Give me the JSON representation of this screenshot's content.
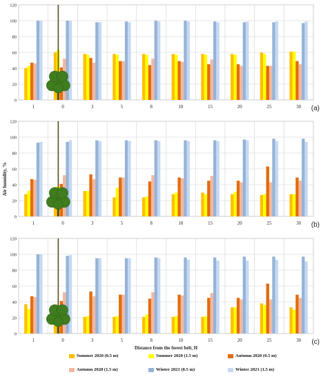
{
  "figure": {
    "ylabel": "Air humidity, %",
    "xlabel": "Distance from the forest belt, H"
  },
  "colors": {
    "Summer 2020 (0.5 m)": "#FFC000",
    "Summer 2020 (1.5 m)": "#FFFF00",
    "Autumn 2020 (0.5 m)": "#E36C0A",
    "Autumn 2020 (1.5 m)": "#F2B7A0",
    "Winter 2021 (0.5 m)": "#95B3D7",
    "Winter 2021 (1.5 m)": "#C6D9F1"
  },
  "legend": {
    "items": [
      "Summer 2020 (0.5 m)",
      "Summer 2020 (1.5 m)",
      "Autumn 2020 (0.5 m)",
      "Autumn 2020 (1.5 m)",
      "Winter 2021 (0.5 m)",
      "Winter 2021 (1.5 m)"
    ]
  },
  "chart_data": [
    {
      "type": "bar",
      "panel_label": "(a)",
      "categories": [
        "1",
        "0",
        "3",
        "5",
        "8",
        "10",
        "15",
        "20",
        "25",
        "30"
      ],
      "ylim": [
        0,
        120
      ],
      "yticks": [
        0,
        20,
        40,
        60,
        80,
        100,
        120
      ],
      "xlabel": "",
      "ylabel": "Air humidity, %",
      "series": [
        {
          "name": "Summer 2020 (0.5 m)",
          "values": [
            40,
            60,
            58,
            58,
            58,
            58,
            58,
            58,
            60,
            61
          ]
        },
        {
          "name": "Summer 2020 (1.5 m)",
          "values": [
            43,
            63,
            57,
            57,
            57,
            57,
            57,
            57,
            58,
            61
          ]
        },
        {
          "name": "Autumn 2020 (0.5 m)",
          "values": [
            47,
            41,
            53,
            49,
            44,
            49,
            45,
            45,
            43,
            49
          ]
        },
        {
          "name": "Autumn 2020 (1.5 m)",
          "values": [
            46,
            52,
            47,
            49,
            52,
            48,
            51,
            43,
            43,
            45
          ]
        },
        {
          "name": "Winter 2021 (0.5 m)",
          "values": [
            100,
            100,
            98,
            99,
            100,
            100,
            99,
            98,
            98,
            97
          ]
        },
        {
          "name": "Winter 2021 (1.5 m)",
          "values": [
            100,
            100,
            98,
            98,
            99,
            99,
            98,
            99,
            99,
            99
          ]
        }
      ]
    },
    {
      "type": "bar",
      "panel_label": "(b)",
      "categories": [
        "1",
        "0",
        "3",
        "5",
        "8",
        "10",
        "15",
        "20",
        "25",
        "30"
      ],
      "ylim": [
        0,
        120
      ],
      "yticks": [
        0,
        20,
        40,
        60,
        80,
        100,
        120
      ],
      "xlabel": "",
      "ylabel": "Air humidity, %",
      "series": [
        {
          "name": "Summer 2020 (0.5 m)",
          "values": [
            28,
            37,
            32,
            24,
            24,
            28,
            30,
            28,
            27,
            28
          ]
        },
        {
          "name": "Summer 2020 (1.5 m)",
          "values": [
            32,
            38,
            32,
            36,
            25,
            30,
            28,
            31,
            28,
            28
          ]
        },
        {
          "name": "Autumn 2020 (0.5 m)",
          "values": [
            47,
            41,
            53,
            49,
            44,
            49,
            45,
            45,
            63,
            49
          ]
        },
        {
          "name": "Autumn 2020 (1.5 m)",
          "values": [
            46,
            52,
            47,
            49,
            52,
            48,
            51,
            43,
            43,
            45
          ]
        },
        {
          "name": "Winter 2021 (0.5 m)",
          "values": [
            93,
            94,
            96,
            96,
            96,
            96,
            96,
            97,
            98,
            98
          ]
        },
        {
          "name": "Winter 2021 (1.5 m)",
          "values": [
            94,
            96,
            95,
            95,
            95,
            95,
            95,
            96,
            95,
            94
          ]
        }
      ]
    },
    {
      "type": "bar",
      "panel_label": "(c)",
      "categories": [
        "1",
        "0",
        "3",
        "5",
        "8",
        "10",
        "15",
        "20",
        "25",
        "30"
      ],
      "ylim": [
        0,
        120
      ],
      "yticks": [
        0,
        20,
        40,
        60,
        80,
        100,
        120
      ],
      "xlabel": "Distance from the forest belt, H",
      "ylabel": "Air humidity, %",
      "series": [
        {
          "name": "Summer 2020 (0.5 m)",
          "values": [
            37,
            30,
            21,
            21,
            21,
            21,
            21,
            33,
            38,
            33
          ]
        },
        {
          "name": "Summer 2020 (1.5 m)",
          "values": [
            31,
            29,
            22,
            22,
            24,
            22,
            22,
            33,
            36,
            30
          ]
        },
        {
          "name": "Autumn 2020 (0.5 m)",
          "values": [
            47,
            41,
            53,
            49,
            44,
            49,
            45,
            45,
            63,
            49
          ]
        },
        {
          "name": "Autumn 2020 (1.5 m)",
          "values": [
            46,
            52,
            47,
            49,
            52,
            48,
            51,
            43,
            43,
            45
          ]
        },
        {
          "name": "Winter 2021 (0.5 m)",
          "values": [
            100,
            98,
            95,
            95,
            96,
            96,
            96,
            97,
            97,
            97
          ]
        },
        {
          "name": "Winter 2021 (1.5 m)",
          "values": [
            100,
            99,
            95,
            95,
            95,
            93,
            92,
            92,
            93,
            91
          ]
        }
      ]
    }
  ]
}
